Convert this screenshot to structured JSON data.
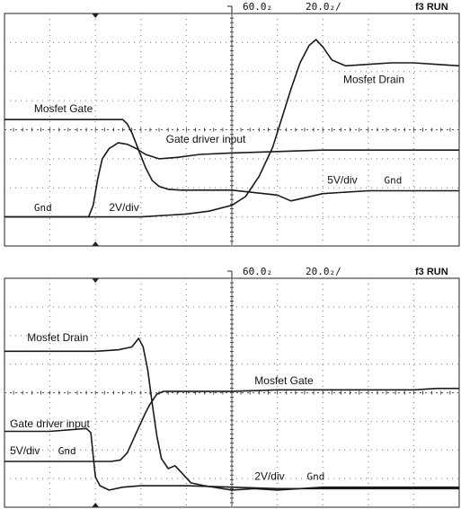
{
  "panels": [
    {
      "header": {
        "timebase": "60.0₂",
        "timediv": "20.0₂/",
        "run": "f3  RUN"
      },
      "chart_data": {
        "type": "line",
        "xlim": [
          0,
          10
        ],
        "ylim": [
          0,
          8
        ],
        "grid": true,
        "series": [
          {
            "name": "Mosfet Gate",
            "color": "#1a1a1a",
            "x": [
              0,
              2.6,
              2.7,
              2.8,
              2.95,
              3.1,
              3.25,
              3.4,
              3.6,
              3.9,
              4.3,
              5,
              6,
              6.3,
              7,
              8,
              9,
              10
            ],
            "y": [
              4.35,
              4.35,
              4.2,
              3.9,
              3.3,
              2.7,
              2.25,
              2.05,
              1.95,
              1.92,
              1.92,
              1.92,
              1.75,
              1.55,
              1.8,
              1.9,
              1.9,
              1.9
            ]
          },
          {
            "name": "Gate driver input",
            "color": "#1a1a1a",
            "x": [
              0,
              1.85,
              1.95,
              2.05,
              2.15,
              2.3,
              2.5,
              2.7,
              2.9,
              3.1,
              3.4,
              3.8,
              4.3,
              5,
              6,
              7,
              8,
              9,
              10
            ],
            "y": [
              1.0,
              1.0,
              1.4,
              2.3,
              3.0,
              3.35,
              3.55,
              3.5,
              3.35,
              3.15,
              3.0,
              3.05,
              3.15,
              3.2,
              3.25,
              3.3,
              3.3,
              3.3,
              3.3
            ]
          },
          {
            "name": "Mosfet Drain",
            "color": "#1a1a1a",
            "x": [
              0,
              2,
              3,
              3.5,
              4,
              4.5,
              5,
              5.3,
              5.6,
              5.9,
              6.1,
              6.3,
              6.5,
              6.7,
              6.85,
              7,
              7.2,
              7.5,
              8,
              8.5,
              9,
              9.5,
              10
            ],
            "y": [
              1.0,
              1.0,
              1.0,
              1.05,
              1.1,
              1.2,
              1.4,
              1.7,
              2.4,
              3.4,
              4.4,
              5.4,
              6.3,
              6.9,
              7.1,
              6.85,
              6.4,
              6.2,
              6.25,
              6.3,
              6.3,
              6.25,
              6.2
            ]
          }
        ],
        "labels": [
          {
            "text": "Mosfet Gate",
            "cls": "lbl",
            "x": 0.65,
            "y": 4.6
          },
          {
            "text": "Gate driver input",
            "cls": "lbl",
            "x": 3.55,
            "y": 3.55
          },
          {
            "text": "Mosfet Drain",
            "cls": "lbl",
            "x": 7.45,
            "y": 5.6
          },
          {
            "text": "5V/div",
            "cls": "lbl",
            "x": 7.1,
            "y": 2.15
          },
          {
            "text": "Gnd",
            "cls": "lbl-mono",
            "x": 8.35,
            "y": 2.15
          },
          {
            "text": "Gnd",
            "cls": "lbl-mono",
            "x": 0.65,
            "y": 1.2
          },
          {
            "text": "2V/div",
            "cls": "lbl",
            "x": 2.3,
            "y": 1.2
          }
        ]
      }
    },
    {
      "header": {
        "timebase": "60.0₂",
        "timediv": "20.0₂/",
        "run": "f3  RUN"
      },
      "chart_data": {
        "type": "line",
        "xlim": [
          0,
          10
        ],
        "ylim": [
          0,
          8
        ],
        "grid": true,
        "series": [
          {
            "name": "Mosfet Drain",
            "color": "#1a1a1a",
            "x": [
              0,
              1,
              2,
              2.5,
              2.8,
              2.95,
              3.05,
              3.15,
              3.25,
              3.35,
              3.45,
              3.6,
              3.75,
              3.9,
              4.1,
              4.4,
              4.8,
              5,
              5.5,
              6,
              7,
              8,
              9,
              10
            ],
            "y": [
              5.45,
              5.45,
              5.45,
              5.5,
              5.6,
              5.9,
              5.6,
              4.8,
              3.6,
              2.5,
              1.7,
              1.35,
              1.45,
              1.2,
              0.85,
              0.75,
              0.65,
              0.6,
              0.65,
              0.6,
              0.7,
              0.7,
              0.7,
              0.7
            ]
          },
          {
            "name": "Mosfet Gate",
            "color": "#1a1a1a",
            "x": [
              0,
              1.9,
              2.35,
              2.55,
              2.7,
              2.8,
              2.9,
              3.0,
              3.1,
              3.2,
              3.35,
              3.5,
              3.7,
              4,
              5,
              6,
              7,
              8,
              9,
              9.5,
              10
            ],
            "y": [
              1.6,
              1.6,
              1.6,
              1.65,
              1.9,
              2.25,
              2.6,
              2.95,
              3.3,
              3.6,
              3.95,
              4.05,
              4.05,
              4.05,
              4.05,
              4.1,
              4.1,
              4.1,
              4.1,
              4.15,
              4.15
            ]
          },
          {
            "name": "Gate driver input",
            "color": "#1a1a1a",
            "x": [
              0,
              1,
              1.8,
              1.9,
              1.95,
              2.0,
              2.1,
              2.3,
              2.6,
              3.0,
              3.5,
              4,
              5,
              6,
              7,
              8,
              9,
              10
            ],
            "y": [
              2.65,
              2.65,
              2.75,
              2.6,
              1.8,
              1.05,
              0.75,
              0.6,
              0.7,
              0.75,
              0.75,
              0.75,
              0.7,
              0.65,
              0.65,
              0.65,
              0.65,
              0.65
            ]
          }
        ],
        "labels": [
          {
            "text": "Mosfet Drain",
            "cls": "lbl",
            "x": 0.5,
            "y": 5.8
          },
          {
            "text": "Mosfet Gate",
            "cls": "lbl",
            "x": 5.5,
            "y": 4.3
          },
          {
            "text": "Gate driver input",
            "cls": "lbl",
            "x": 0.12,
            "y": 2.8
          },
          {
            "text": "5V/div",
            "cls": "lbl",
            "x": 0.12,
            "y": 1.85
          },
          {
            "text": "Gnd",
            "cls": "lbl-mono",
            "x": 1.18,
            "y": 1.85
          },
          {
            "text": "2V/div",
            "cls": "lbl",
            "x": 5.5,
            "y": 0.95
          },
          {
            "text": "Gnd",
            "cls": "lbl-mono",
            "x": 6.65,
            "y": 0.95
          }
        ]
      }
    }
  ]
}
